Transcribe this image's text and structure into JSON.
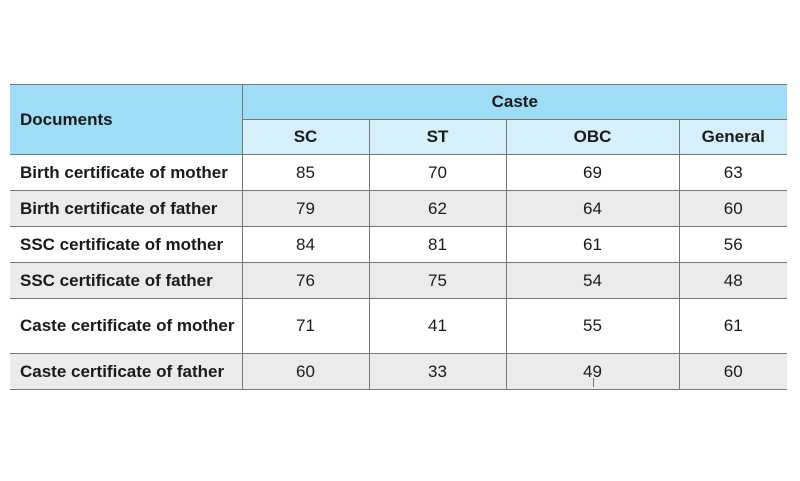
{
  "table": {
    "row_header": "Documents",
    "group_header": "Caste",
    "columns": [
      "SC",
      "ST",
      "OBC",
      "General"
    ],
    "rows": [
      {
        "label": "Birth certificate of mother",
        "values": [
          "85",
          "70",
          "69",
          "63"
        ]
      },
      {
        "label": "Birth certificate of father",
        "values": [
          "79",
          "62",
          "64",
          "60"
        ]
      },
      {
        "label": "SSC certificate of mother",
        "values": [
          "84",
          "81",
          "61",
          "56"
        ]
      },
      {
        "label": "SSC certificate of father",
        "values": [
          "76",
          "75",
          "54",
          "48"
        ]
      },
      {
        "label": "Caste certificate of mother",
        "values": [
          "71",
          "41",
          "55",
          "61"
        ]
      },
      {
        "label": "Caste certificate of father",
        "values": [
          "60",
          "33",
          "49",
          "60"
        ]
      }
    ]
  },
  "colors": {
    "header_dark": "#9fdcf5",
    "header_light": "#d6f0fb",
    "stripe": "#ebebed"
  }
}
